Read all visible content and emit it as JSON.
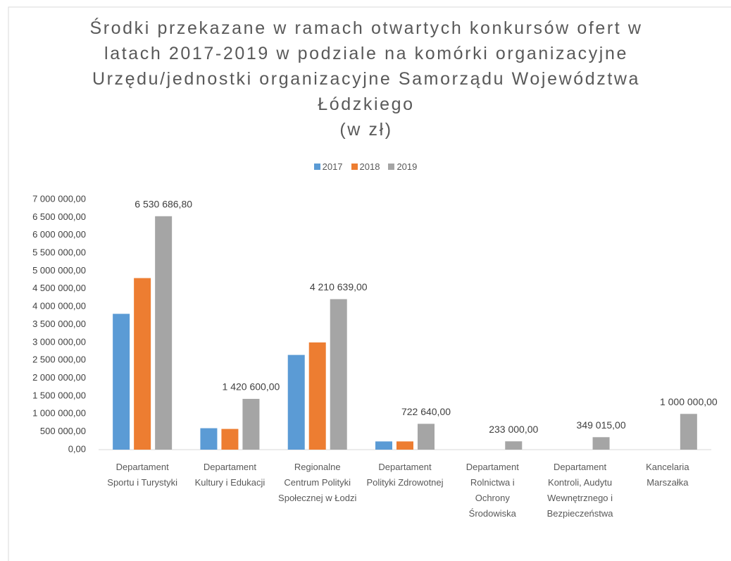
{
  "chart_data": {
    "type": "bar",
    "title": "Środki przekazane w ramach otwartych konkursów ofert w latach 2017-2019 w podziale na komórki organizacyjne Urzędu/jednostki organizacyjne Samorządu Województwa Łódzkiego",
    "subtitle": "(w zł)",
    "categories": [
      "Departament Sportu i Turystyki",
      "Departament Kultury i Edukacji",
      "Regionalne Centrum Polityki Społecznej w Łodzi",
      "Departament Polityki Zdrowotnej",
      "Departament Rolnictwa i Ochrony Środowiska",
      "Departament Kontroli, Audytu Wewnętrznego i Bezpieczeństwa",
      "Kancelaria Marszałka"
    ],
    "series": [
      {
        "name": "2017",
        "color": "#5b9bd5",
        "values": [
          3800000,
          600000,
          2650000,
          230000,
          null,
          null,
          null
        ]
      },
      {
        "name": "2018",
        "color": "#ed7d31",
        "values": [
          4800000,
          580000,
          3000000,
          230000,
          null,
          null,
          null
        ]
      },
      {
        "name": "2019",
        "color": "#a5a5a5",
        "values": [
          6530686.8,
          1420600,
          4210639,
          722640,
          233000,
          349015,
          1000000
        ],
        "value_labels": [
          "6 530 686,80",
          "1 420 600,00",
          "4 210 639,00",
          "722 640,00",
          "233 000,00",
          "349 015,00",
          "1 000 000,00"
        ]
      }
    ],
    "ylim": [
      0,
      7000000
    ],
    "yticks": [
      {
        "value": 0,
        "label": "0,00"
      },
      {
        "value": 500000,
        "label": "500 000,00"
      },
      {
        "value": 1000000,
        "label": "1 000 000,00"
      },
      {
        "value": 1500000,
        "label": "1 500 000,00"
      },
      {
        "value": 2000000,
        "label": "2 000 000,00"
      },
      {
        "value": 2500000,
        "label": "2 500 000,00"
      },
      {
        "value": 3000000,
        "label": "3 000 000,00"
      },
      {
        "value": 3500000,
        "label": "3 500 000,00"
      },
      {
        "value": 4000000,
        "label": "4 000 000,00"
      },
      {
        "value": 4500000,
        "label": "4 500 000,00"
      },
      {
        "value": 5000000,
        "label": "5 000 000,00"
      },
      {
        "value": 5500000,
        "label": "5 500 000,00"
      },
      {
        "value": 6000000,
        "label": "6 000 000,00"
      },
      {
        "value": 6500000,
        "label": "6 500 000,00"
      },
      {
        "value": 7000000,
        "label": "7 000 000,00"
      }
    ],
    "grid": false,
    "legend": "top"
  }
}
